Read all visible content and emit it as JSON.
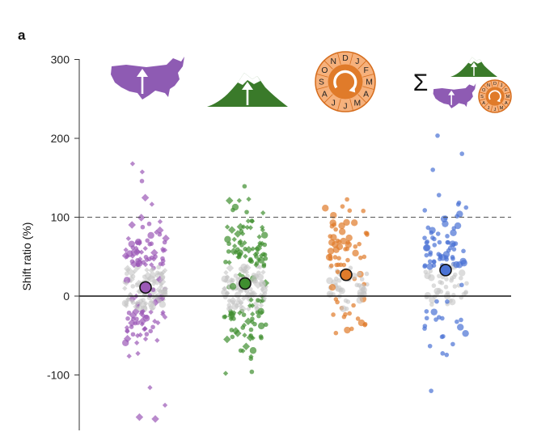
{
  "panel_label": "a",
  "chart_data": {
    "type": "scatter",
    "title": "",
    "xlabel": "",
    "ylabel": "Shift ratio (%)",
    "ylim": [
      -170,
      300
    ],
    "yticks": [
      -100,
      0,
      100,
      200,
      300
    ],
    "reference_lines": [
      {
        "y": 0,
        "style": "solid"
      },
      {
        "y": 100,
        "style": "dashed"
      }
    ],
    "groups": [
      {
        "name": "latitude",
        "icon": "us-map-icon",
        "color": "#9b59b6",
        "mean": 11,
        "n": 220
      },
      {
        "name": "elevation",
        "icon": "mountain-icon",
        "color": "#3f8f2f",
        "mean": 16,
        "n": 230
      },
      {
        "name": "phenology",
        "icon": "calendar-wheel-icon",
        "color": "#e07b2a",
        "mean": 27,
        "n": 110
      },
      {
        "name": "combined",
        "icon": "sum-icon",
        "color": "#4a72d4",
        "mean": 33,
        "n": 130
      }
    ],
    "icon_letters": [
      "O",
      "N",
      "D",
      "J",
      "F",
      "M",
      "A",
      "M",
      "J",
      "J",
      "A",
      "S"
    ],
    "sum_symbol": "Σ"
  }
}
